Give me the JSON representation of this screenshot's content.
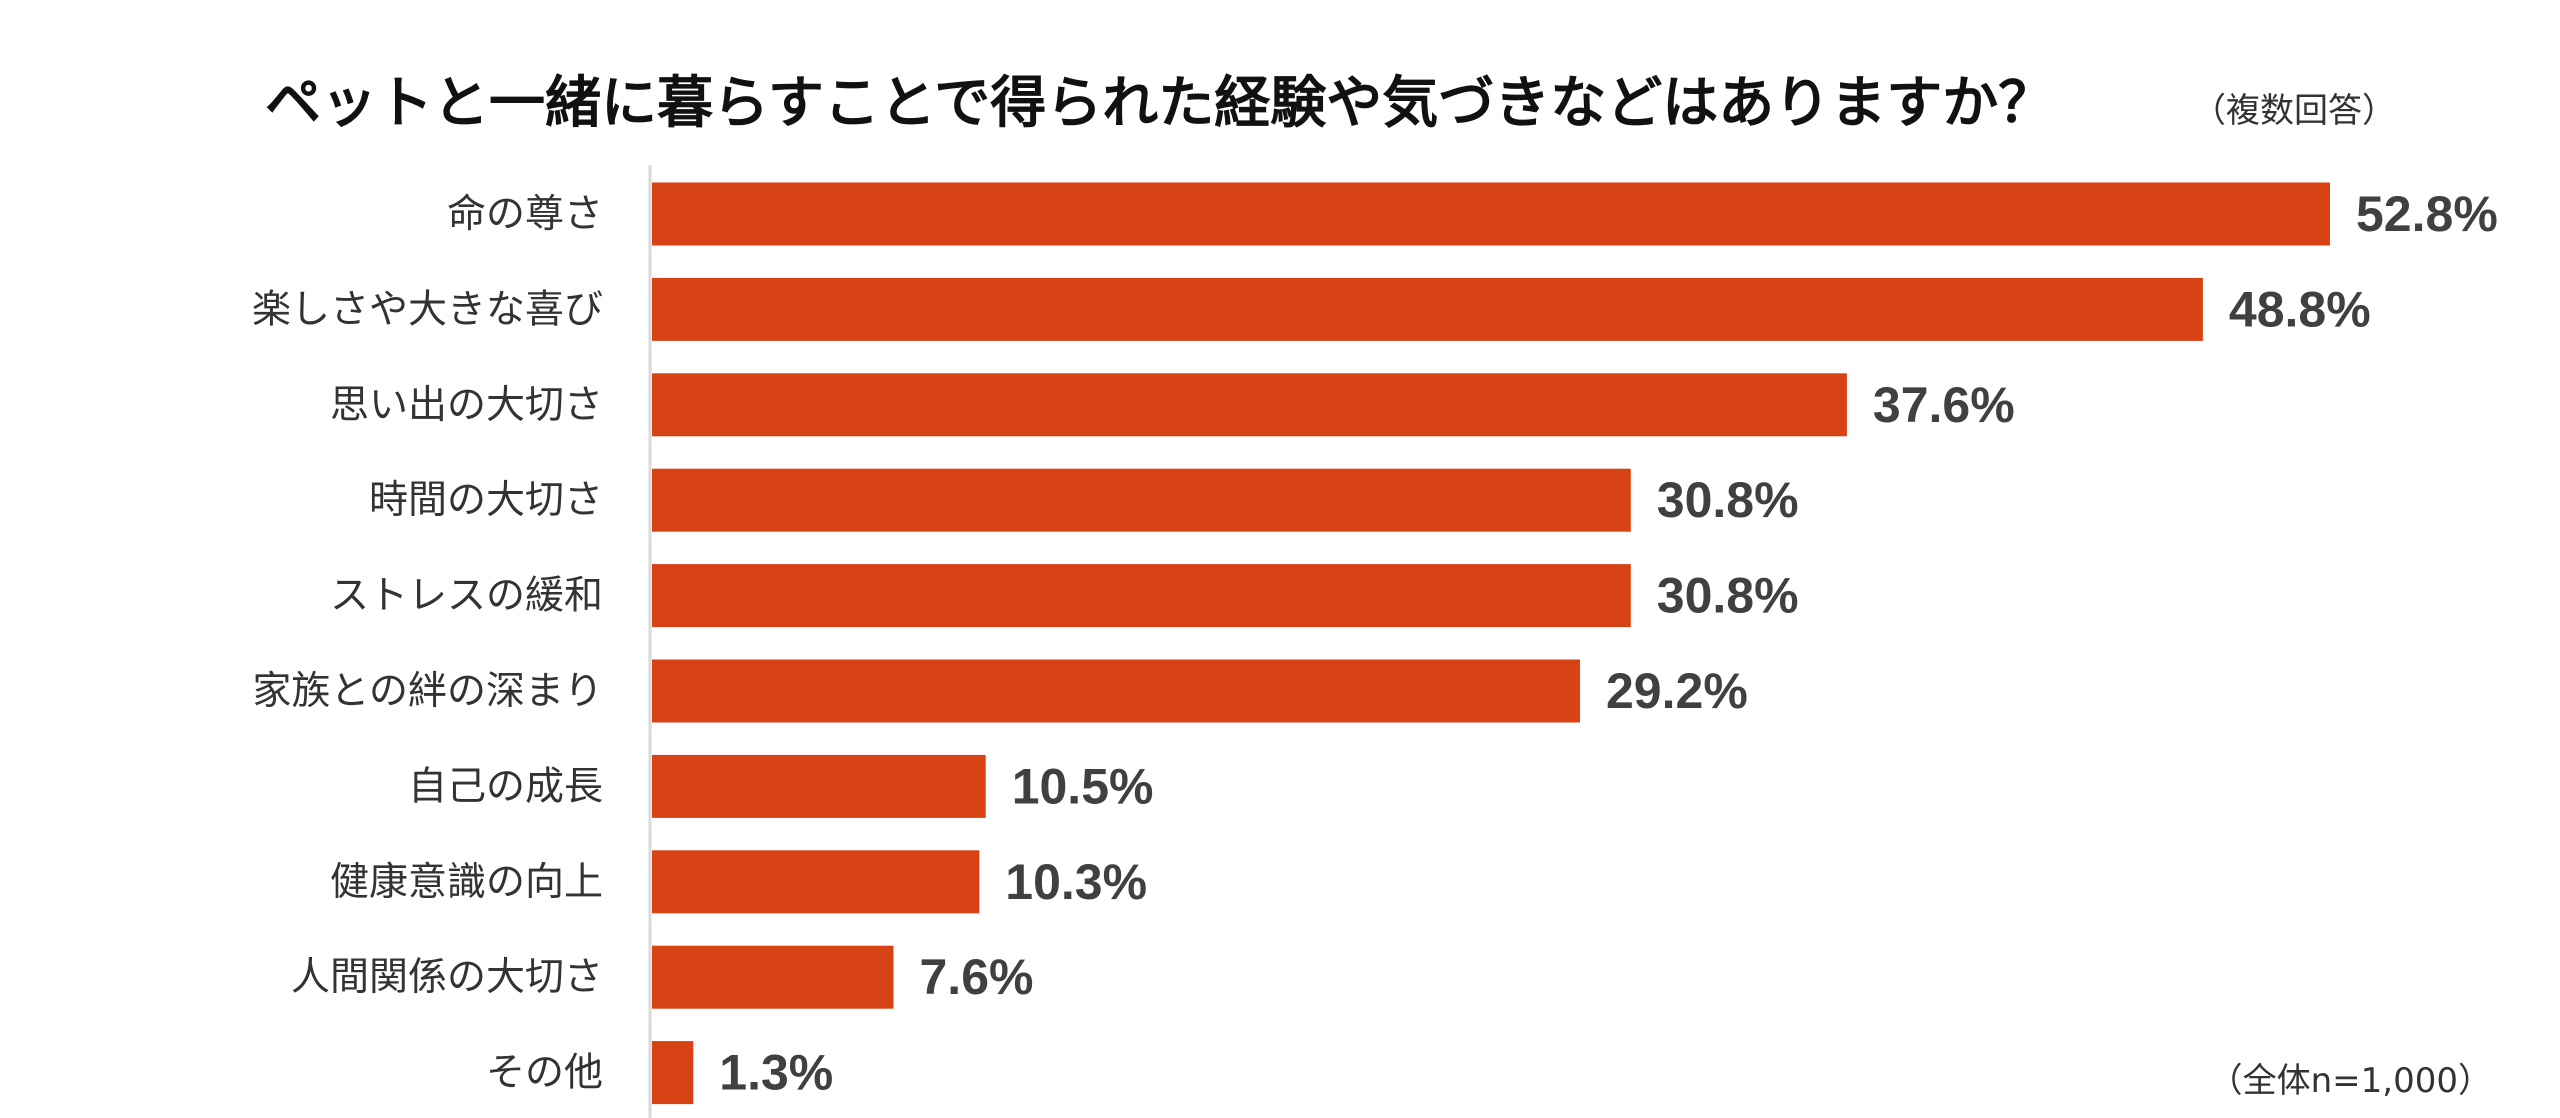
{
  "chart_data": {
    "type": "bar",
    "orientation": "horizontal",
    "title": "ペットと一緒に暮らすことで得られた経験や気づきなどはありますか？",
    "subtitle": "（複数回答）",
    "note": "（全体n=1,000）",
    "categories": [
      "命の尊さ",
      "楽しさや大きな喜び",
      "思い出の大切さ",
      "時間の大切さ",
      "ストレスの緩和",
      "家族との絆の深まり",
      "自己の成長",
      "健康意識の向上",
      "人間関係の大切さ",
      "その他"
    ],
    "values": [
      52.8,
      48.8,
      37.6,
      30.8,
      30.8,
      29.2,
      10.5,
      10.3,
      7.6,
      1.3
    ],
    "value_labels": [
      "52.8%",
      "48.8%",
      "37.6%",
      "30.8%",
      "30.8%",
      "29.2%",
      "10.5%",
      "10.3%",
      "7.6%",
      "1.3%"
    ],
    "xlim": [
      0,
      52.8
    ],
    "bar_color": "#d84315",
    "axis_color": "#d9d9d9",
    "grid": false,
    "legend": "none"
  }
}
